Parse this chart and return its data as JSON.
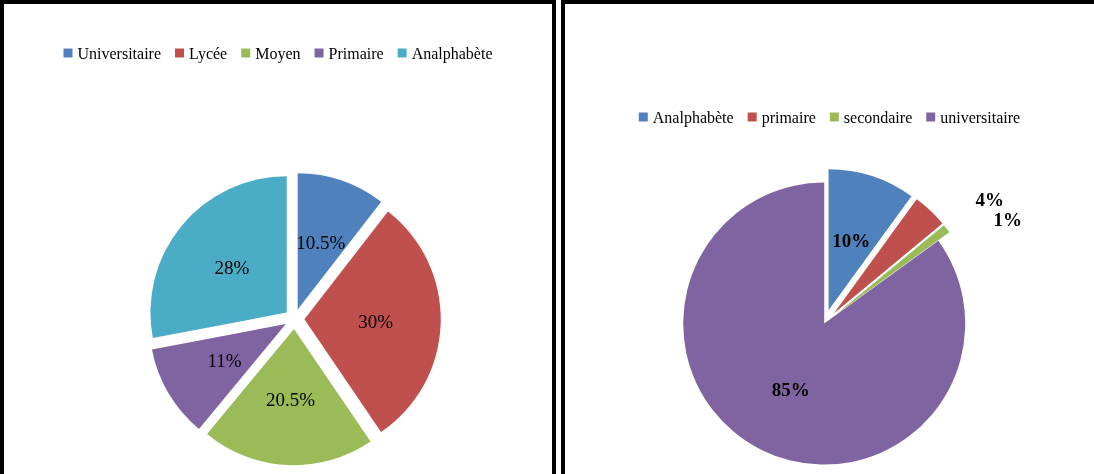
{
  "chart_data": [
    {
      "type": "pie",
      "categories": [
        "Universitaire",
        "Lycée",
        "Moyen",
        "Primaire",
        "Analphabète"
      ],
      "values": [
        10.5,
        30,
        20.5,
        11,
        28
      ],
      "colors": [
        "#4f81bd",
        "#c0504d",
        "#9bbb59",
        "#8064a2",
        "#4bacc6"
      ],
      "value_labels": [
        "10.5%",
        "30%",
        "20.5%",
        "11%",
        "28%"
      ],
      "legend": "top"
    },
    {
      "type": "pie",
      "categories": [
        "Analphabète",
        "primaire",
        "secondaire",
        "universitaire"
      ],
      "values": [
        10,
        4,
        1,
        85
      ],
      "colors": [
        "#4f81bd",
        "#c0504d",
        "#9bbb59",
        "#8064a2"
      ],
      "value_labels": [
        "10%",
        "4%",
        "1%",
        "85%"
      ],
      "legend": "top"
    }
  ]
}
